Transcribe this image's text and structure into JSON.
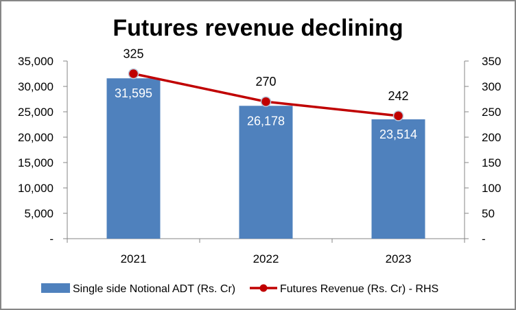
{
  "chart_data": {
    "type": "bar",
    "title": "Futures revenue declining",
    "categories": [
      "2021",
      "2022",
      "2023"
    ],
    "series": [
      {
        "name": "Single side Notional ADT (Rs. Cr)",
        "type": "bar",
        "axis": "left",
        "color": "#4F81BD",
        "values": [
          31595,
          26178,
          23514
        ],
        "labels": [
          "31,595",
          "26,178",
          "23,514"
        ]
      },
      {
        "name": "Futures Revenue (Rs. Cr) - RHS",
        "type": "line",
        "axis": "right",
        "color": "#C00000",
        "values": [
          325,
          270,
          242
        ],
        "labels": [
          "325",
          "270",
          "242"
        ]
      }
    ],
    "y_left": {
      "range": [
        0,
        35000
      ],
      "ticks": [
        0,
        5000,
        10000,
        15000,
        20000,
        25000,
        30000,
        35000
      ],
      "tick_labels": [
        "-",
        "5,000",
        "10,000",
        "15,000",
        "20,000",
        "25,000",
        "30,000",
        "35,000"
      ]
    },
    "y_right": {
      "range": [
        0,
        350
      ],
      "ticks": [
        0,
        50,
        100,
        150,
        200,
        250,
        300,
        350
      ],
      "tick_labels": [
        "-",
        "50",
        "100",
        "150",
        "200",
        "250",
        "300",
        "350"
      ]
    },
    "xlabel": "",
    "ylabel": "",
    "grid": false,
    "legend_position": "bottom"
  }
}
